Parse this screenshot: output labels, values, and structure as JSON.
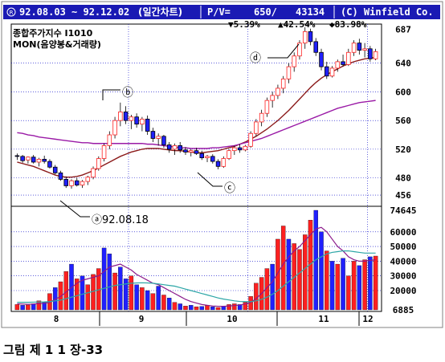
{
  "header": {
    "date_range": "92.08.03 ~ 92.12.02",
    "chart_kind": "(일간차트)",
    "pv_label": "P/V=",
    "pv_value": "650/",
    "pv_volume": "43134",
    "copyright": "(C) Winfield Co."
  },
  "stats": {
    "down": "▼5.39%",
    "up": "▲42.54%",
    "diamond": "◆83.98%"
  },
  "legend": {
    "line1": "종합주가지수 I1010",
    "line2": "MON(음양봉&거래량)"
  },
  "annotations": {
    "a": "ⓐ92.08.18",
    "b": "ⓑ",
    "c": "ⓒ",
    "d": "ⓓ"
  },
  "caption": "그림 제 1 1 장-33",
  "colors": {
    "frame_blue": "#1a1ab4",
    "up_red": "#ff2020",
    "down_blue": "#2020ff",
    "ma_short": "#8b1a1a",
    "ma_long": "#9a1aa6",
    "vol_ma_short": "#8b1a8b",
    "vol_ma_long": "#2ca6a6",
    "grid": "#0000c8"
  },
  "chart_data": [
    {
      "type": "candlestick",
      "title": "종합주가지수 I1010",
      "x_categories": [
        "8",
        "9",
        "10",
        "11",
        "12"
      ],
      "y_ticks": [
        456,
        480,
        520,
        560,
        600,
        640,
        687
      ],
      "ylim": [
        446,
        690
      ],
      "grid": true,
      "ohlc": [
        [
          511,
          514,
          505,
          510
        ],
        [
          510,
          512,
          501,
          504
        ],
        [
          505,
          510,
          500,
          509
        ],
        [
          509,
          512,
          500,
          502
        ],
        [
          502,
          508,
          496,
          506
        ],
        [
          506,
          511,
          500,
          503
        ],
        [
          503,
          506,
          493,
          495
        ],
        [
          495,
          498,
          485,
          487
        ],
        [
          487,
          490,
          476,
          478
        ],
        [
          478,
          482,
          466,
          469
        ],
        [
          469,
          478,
          465,
          476
        ],
        [
          476,
          480,
          468,
          470
        ],
        [
          470,
          477,
          466,
          475
        ],
        [
          475,
          483,
          470,
          481
        ],
        [
          481,
          496,
          478,
          493
        ],
        [
          493,
          510,
          490,
          507
        ],
        [
          507,
          528,
          503,
          525
        ],
        [
          525,
          545,
          520,
          540
        ],
        [
          540,
          565,
          535,
          560
        ],
        [
          560,
          585,
          552,
          572
        ],
        [
          572,
          580,
          555,
          560
        ],
        [
          560,
          568,
          548,
          565
        ],
        [
          565,
          570,
          550,
          555
        ],
        [
          555,
          565,
          545,
          562
        ],
        [
          562,
          567,
          540,
          545
        ],
        [
          545,
          550,
          530,
          535
        ],
        [
          535,
          542,
          525,
          538
        ],
        [
          538,
          540,
          522,
          526
        ],
        [
          526,
          530,
          515,
          520
        ],
        [
          520,
          528,
          512,
          525
        ],
        [
          525,
          530,
          515,
          519
        ],
        [
          519,
          523,
          512,
          516
        ],
        [
          516,
          520,
          510,
          518
        ],
        [
          518,
          522,
          512,
          514
        ],
        [
          514,
          518,
          505,
          508
        ],
        [
          508,
          512,
          502,
          510
        ],
        [
          510,
          513,
          500,
          503
        ],
        [
          503,
          506,
          492,
          496
        ],
        [
          496,
          510,
          494,
          507
        ],
        [
          507,
          520,
          505,
          518
        ],
        [
          518,
          525,
          512,
          522
        ],
        [
          522,
          527,
          515,
          519
        ],
        [
          519,
          526,
          517,
          524
        ],
        [
          524,
          545,
          522,
          542
        ],
        [
          542,
          562,
          538,
          558
        ],
        [
          558,
          575,
          552,
          570
        ],
        [
          570,
          592,
          565,
          588
        ],
        [
          588,
          600,
          578,
          595
        ],
        [
          595,
          610,
          590,
          605
        ],
        [
          605,
          622,
          598,
          618
        ],
        [
          618,
          640,
          612,
          635
        ],
        [
          635,
          655,
          628,
          650
        ],
        [
          650,
          672,
          645,
          668
        ],
        [
          668,
          690,
          660,
          684
        ],
        [
          684,
          688,
          665,
          670
        ],
        [
          670,
          675,
          650,
          655
        ],
        [
          655,
          660,
          630,
          635
        ],
        [
          635,
          642,
          618,
          622
        ],
        [
          622,
          636,
          620,
          633
        ],
        [
          633,
          645,
          628,
          642
        ],
        [
          642,
          652,
          635,
          638
        ],
        [
          638,
          660,
          636,
          655
        ],
        [
          655,
          672,
          650,
          668
        ],
        [
          668,
          674,
          652,
          658
        ],
        [
          658,
          668,
          648,
          660
        ],
        [
          660,
          664,
          642,
          646
        ],
        [
          646,
          660,
          644,
          656
        ]
      ],
      "moving_averages": [
        {
          "values": [
            502,
            500,
            498,
            496,
            493,
            490,
            487,
            484,
            482,
            481,
            481,
            482,
            484,
            487,
            490,
            494,
            498,
            502,
            506,
            510,
            513,
            516,
            518,
            520,
            521,
            521,
            521,
            520,
            519,
            518,
            518,
            517,
            516,
            515,
            515,
            516,
            517,
            518,
            520,
            522,
            524,
            527,
            530,
            534,
            538,
            543,
            548,
            554,
            560,
            567,
            574,
            582,
            590,
            598,
            606,
            613,
            619,
            624,
            628,
            632,
            636,
            639,
            642,
            644,
            646,
            647,
            648
          ]
        },
        {
          "values": [
            543,
            542,
            540,
            539,
            537,
            536,
            535,
            534,
            533,
            532,
            531,
            530,
            529,
            529,
            528,
            528,
            528,
            528,
            528,
            528,
            528,
            528,
            528,
            528,
            527,
            527,
            526,
            525,
            524,
            523,
            522,
            522,
            521,
            521,
            521,
            521,
            522,
            522,
            523,
            524,
            525,
            527,
            529,
            531,
            533,
            535,
            538,
            541,
            544,
            547,
            550,
            553,
            556,
            559,
            562,
            565,
            568,
            571,
            574,
            577,
            579,
            581,
            583,
            585,
            586,
            587,
            588
          ]
        }
      ]
    },
    {
      "type": "bar",
      "title": "거래량",
      "y_ticks": [
        6885,
        20000,
        30000,
        40000,
        50000,
        60000,
        74645
      ],
      "ylim": [
        6885,
        74645
      ],
      "bars": [
        {
          "v": 10500,
          "d": "up"
        },
        {
          "v": 10000,
          "d": "dn"
        },
        {
          "v": 10200,
          "d": "up"
        },
        {
          "v": 11000,
          "d": "dn"
        },
        {
          "v": 13000,
          "d": "up"
        },
        {
          "v": 12000,
          "d": "dn"
        },
        {
          "v": 18000,
          "d": "up"
        },
        {
          "v": 22000,
          "d": "dn"
        },
        {
          "v": 26000,
          "d": "up"
        },
        {
          "v": 33000,
          "d": "up"
        },
        {
          "v": 38000,
          "d": "dn"
        },
        {
          "v": 28000,
          "d": "up"
        },
        {
          "v": 30000,
          "d": "dn"
        },
        {
          "v": 24000,
          "d": "up"
        },
        {
          "v": 31000,
          "d": "up"
        },
        {
          "v": 35000,
          "d": "up"
        },
        {
          "v": 49000,
          "d": "dn"
        },
        {
          "v": 45000,
          "d": "dn"
        },
        {
          "v": 32000,
          "d": "up"
        },
        {
          "v": 36000,
          "d": "dn"
        },
        {
          "v": 28000,
          "d": "dn"
        },
        {
          "v": 30000,
          "d": "up"
        },
        {
          "v": 24000,
          "d": "dn"
        },
        {
          "v": 22000,
          "d": "up"
        },
        {
          "v": 20000,
          "d": "dn"
        },
        {
          "v": 18000,
          "d": "up"
        },
        {
          "v": 23000,
          "d": "dn"
        },
        {
          "v": 17000,
          "d": "up"
        },
        {
          "v": 15000,
          "d": "dn"
        },
        {
          "v": 12000,
          "d": "up"
        },
        {
          "v": 11000,
          "d": "dn"
        },
        {
          "v": 9500,
          "d": "up"
        },
        {
          "v": 10000,
          "d": "dn"
        },
        {
          "v": 9000,
          "d": "up"
        },
        {
          "v": 9200,
          "d": "dn"
        },
        {
          "v": 9800,
          "d": "up"
        },
        {
          "v": 9000,
          "d": "dn"
        },
        {
          "v": 8500,
          "d": "up"
        },
        {
          "v": 9500,
          "d": "dn"
        },
        {
          "v": 10500,
          "d": "up"
        },
        {
          "v": 11000,
          "d": "up"
        },
        {
          "v": 10500,
          "d": "dn"
        },
        {
          "v": 12000,
          "d": "up"
        },
        {
          "v": 16000,
          "d": "up"
        },
        {
          "v": 25000,
          "d": "up"
        },
        {
          "v": 29000,
          "d": "up"
        },
        {
          "v": 35000,
          "d": "up"
        },
        {
          "v": 38000,
          "d": "dn"
        },
        {
          "v": 55000,
          "d": "up"
        },
        {
          "v": 64000,
          "d": "up"
        },
        {
          "v": 55000,
          "d": "dn"
        },
        {
          "v": 52000,
          "d": "up"
        },
        {
          "v": 48000,
          "d": "up"
        },
        {
          "v": 58000,
          "d": "up"
        },
        {
          "v": 68000,
          "d": "up"
        },
        {
          "v": 74645,
          "d": "dn"
        },
        {
          "v": 60000,
          "d": "dn"
        },
        {
          "v": 47000,
          "d": "up"
        },
        {
          "v": 40000,
          "d": "dn"
        },
        {
          "v": 38000,
          "d": "up"
        },
        {
          "v": 42000,
          "d": "dn"
        },
        {
          "v": 30000,
          "d": "up"
        },
        {
          "v": 40000,
          "d": "up"
        },
        {
          "v": 37000,
          "d": "dn"
        },
        {
          "v": 41000,
          "d": "up"
        },
        {
          "v": 43000,
          "d": "dn"
        },
        {
          "v": 43500,
          "d": "up"
        }
      ],
      "moving_averages": [
        {
          "values": [
            11000,
            10800,
            10600,
            10800,
            11200,
            11300,
            12000,
            14000,
            16000,
            19000,
            22000,
            25000,
            27000,
            28000,
            29000,
            30000,
            33000,
            36000,
            37000,
            38000,
            36000,
            34000,
            31000,
            29000,
            27000,
            25000,
            24000,
            22000,
            20000,
            18000,
            16000,
            14000,
            12500,
            11500,
            10500,
            10000,
            9500,
            9300,
            9300,
            9500,
            9800,
            10200,
            10800,
            12000,
            14500,
            18000,
            22000,
            26000,
            32000,
            38000,
            43000,
            47000,
            50000,
            54000,
            58000,
            62000,
            63000,
            60000,
            55000,
            50000,
            47000,
            43000,
            41000,
            40000,
            40000,
            40500,
            41000
          ]
        },
        {
          "values": [
            12000,
            12000,
            12000,
            12100,
            12200,
            12300,
            12500,
            13000,
            13500,
            14500,
            15500,
            16500,
            17500,
            18500,
            19500,
            20500,
            21500,
            22500,
            23500,
            24000,
            24500,
            25000,
            25200,
            25300,
            25200,
            25000,
            24500,
            24000,
            23500,
            23000,
            22000,
            21000,
            20000,
            19000,
            18000,
            17000,
            16000,
            15000,
            14200,
            13600,
            13000,
            12600,
            12400,
            12500,
            13000,
            14000,
            15500,
            17500,
            20000,
            23000,
            26000,
            29000,
            32000,
            35000,
            38000,
            41000,
            43000,
            45000,
            46000,
            46500,
            47000,
            47000,
            46500,
            46000,
            45500,
            45500,
            45500
          ]
        }
      ]
    }
  ]
}
